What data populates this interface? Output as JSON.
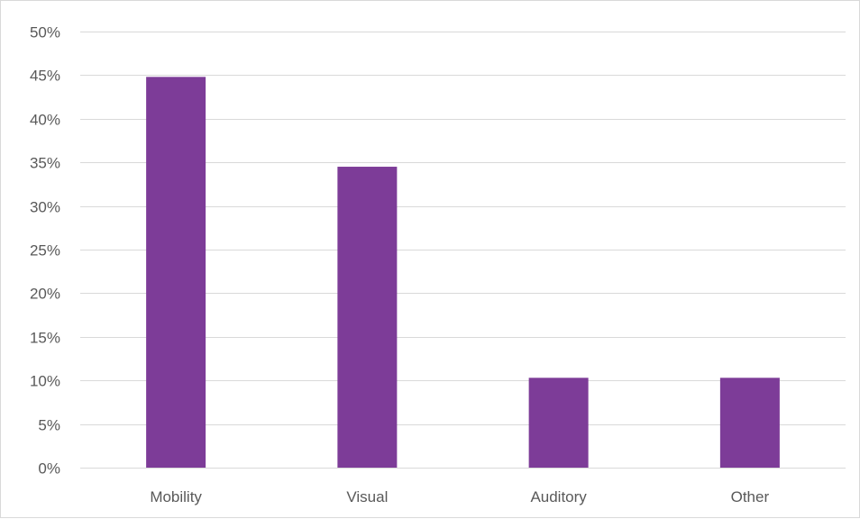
{
  "chart_data": {
    "type": "bar",
    "categories": [
      "Mobility",
      "Visual",
      "Auditory",
      "Other"
    ],
    "values": [
      0.448,
      0.345,
      0.103,
      0.103
    ],
    "ylim": [
      0,
      0.5
    ],
    "ytick_step": 0.05,
    "ytick_labels": [
      "0%",
      "5%",
      "10%",
      "15%",
      "20%",
      "25%",
      "30%",
      "35%",
      "40%",
      "45%",
      "50%"
    ],
    "grid": true,
    "legend": "none",
    "bar_color": "#7d3c98",
    "title": "",
    "xlabel": "",
    "ylabel": ""
  }
}
